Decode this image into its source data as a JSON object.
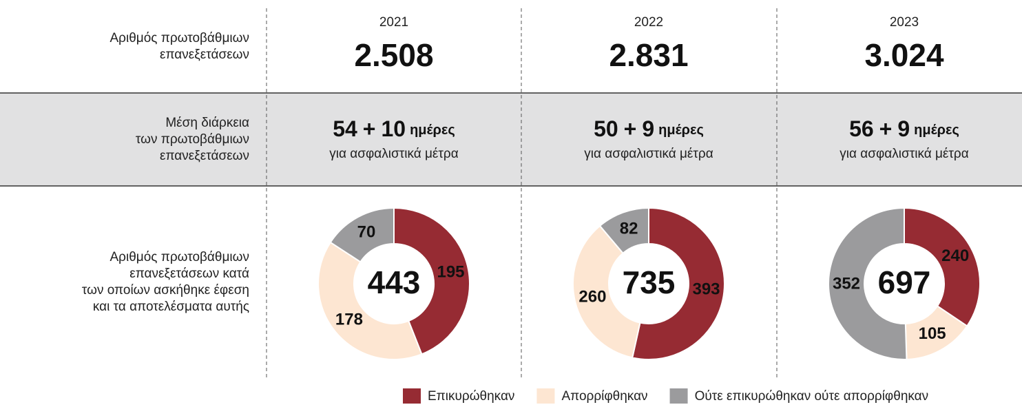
{
  "row_labels": [
    [
      "Αριθμός πρωτοβάθμιων",
      "επανεξετάσεων"
    ],
    [
      "Μέση διάρκεια",
      "των πρωτοβάθμιων",
      "επανεξετάσεων"
    ],
    [
      "Αριθμός πρωτοβάθμιων",
      "επανεξετάσεων κατά",
      "των οποίων ασκήθηκε έφεση",
      "και τα αποτελέσματα αυτής"
    ]
  ],
  "columns": [
    {
      "year": "2021",
      "count": "2.508",
      "duration": {
        "main": "54",
        "sign": "+",
        "extra": "10",
        "unit": "ημέρες",
        "note": "για ασφαλιστικά μέτρα"
      }
    },
    {
      "year": "2022",
      "count": "2.831",
      "duration": {
        "main": "50",
        "sign": "+",
        "extra": "9",
        "unit": "ημέρες",
        "note": "για ασφαλιστικά μέτρα"
      }
    },
    {
      "year": "2023",
      "count": "3.024",
      "duration": {
        "main": "56",
        "sign": "+",
        "extra": "9",
        "unit": "ημέρες",
        "note": "για ασφαλιστικά μέτρα"
      }
    }
  ],
  "legend": [
    {
      "name": "Επικυρώθηκαν",
      "color": "#962b33"
    },
    {
      "name": "Απορρίφθηκαν",
      "color": "#fde6d2"
    },
    {
      "name": "Ούτε επικυρώθηκαν ούτε απορρίφθηκαν",
      "color": "#9b9b9d"
    }
  ],
  "chart_data": [
    {
      "type": "donut",
      "total": 443,
      "values": [
        195,
        178,
        70
      ]
    },
    {
      "type": "donut",
      "total": 735,
      "values": [
        393,
        260,
        82
      ]
    },
    {
      "type": "donut",
      "total": 697,
      "values": [
        240,
        105,
        352
      ]
    }
  ]
}
